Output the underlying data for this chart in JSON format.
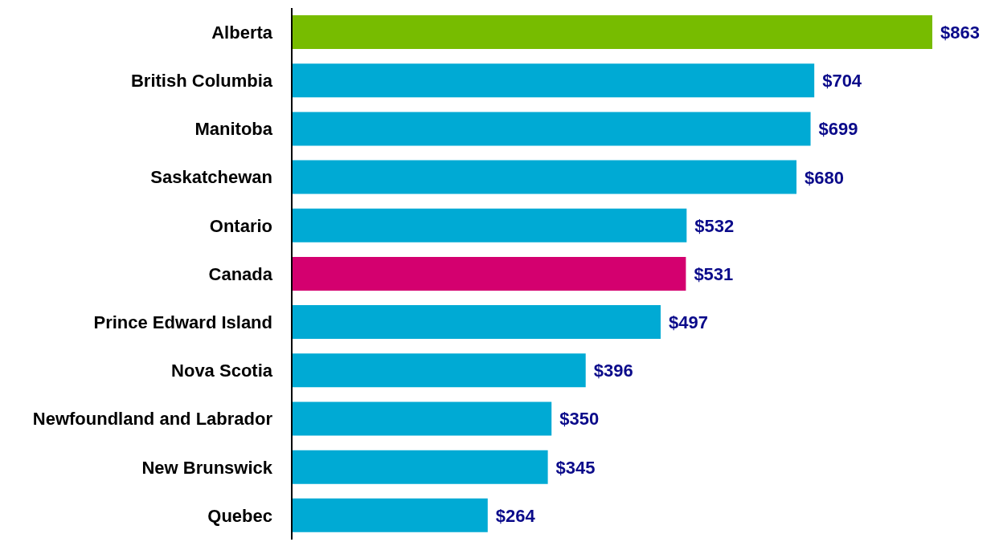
{
  "chart_data": {
    "type": "bar",
    "orientation": "horizontal",
    "categories": [
      "Alberta",
      "British Columbia",
      "Manitoba",
      "Saskatchewan",
      "Ontario",
      "Canada",
      "Prince Edward Island",
      "Nova Scotia",
      "Newfoundland and Labrador",
      "New Brunswick",
      "Quebec"
    ],
    "values": [
      863,
      704,
      699,
      680,
      532,
      531,
      497,
      396,
      350,
      345,
      264
    ],
    "value_labels": [
      "$863",
      "$704",
      "$699",
      "$680",
      "$532",
      "$531",
      "$497",
      "$396",
      "$350",
      "$345",
      "$264"
    ],
    "colors": [
      "#77bc00",
      "#00aad4",
      "#00aad4",
      "#00aad4",
      "#00aad4",
      "#d4006f",
      "#00aad4",
      "#00aad4",
      "#00aad4",
      "#00aad4",
      "#00aad4"
    ]
  }
}
